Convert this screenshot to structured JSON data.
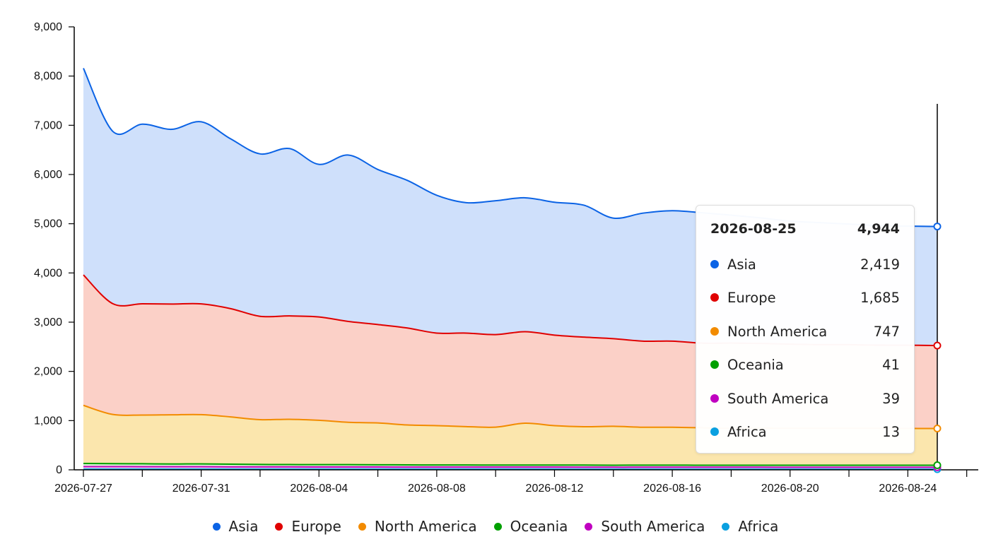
{
  "chart_data": {
    "type": "area",
    "stacked": true,
    "x": [
      "2026-07-27",
      "2026-07-28",
      "2026-07-29",
      "2026-07-30",
      "2026-07-31",
      "2026-08-01",
      "2026-08-02",
      "2026-08-03",
      "2026-08-04",
      "2026-08-05",
      "2026-08-06",
      "2026-08-07",
      "2026-08-08",
      "2026-08-09",
      "2026-08-10",
      "2026-08-11",
      "2026-08-12",
      "2026-08-13",
      "2026-08-14",
      "2026-08-15",
      "2026-08-16",
      "2026-08-17",
      "2026-08-18",
      "2026-08-19",
      "2026-08-20",
      "2026-08-21",
      "2026-08-22",
      "2026-08-23",
      "2026-08-24",
      "2026-08-25"
    ],
    "x_ticks": [
      "2026-07-27",
      "2026-07-31",
      "2026-08-04",
      "2026-08-08",
      "2026-08-12",
      "2026-08-16",
      "2026-08-20",
      "2026-08-24"
    ],
    "ylim": [
      0,
      9000
    ],
    "y_ticks": [
      "0",
      "1,000",
      "2,000",
      "3,000",
      "4,000",
      "5,000",
      "6,000",
      "7,000",
      "8,000",
      "9,000"
    ],
    "legend_position": "bottom",
    "grid": false,
    "series": [
      {
        "name": "Asia",
        "color": "#0b63e5",
        "fill": "#cfe0fb",
        "values": [
          4200,
          3500,
          3650,
          3550,
          3700,
          3450,
          3300,
          3400,
          3100,
          3380,
          3150,
          3000,
          2800,
          2650,
          2720,
          2720,
          2700,
          2680,
          2450,
          2600,
          2650,
          2650,
          2600,
          2550,
          2500,
          2480,
          2450,
          2430,
          2420,
          2419
        ]
      },
      {
        "name": "Europe",
        "color": "#e00000",
        "fill": "#fbd0c7",
        "values": [
          2650,
          2250,
          2260,
          2250,
          2250,
          2200,
          2100,
          2100,
          2100,
          2050,
          2000,
          1970,
          1880,
          1900,
          1880,
          1860,
          1840,
          1820,
          1780,
          1750,
          1750,
          1720,
          1730,
          1720,
          1710,
          1700,
          1700,
          1690,
          1690,
          1685
        ]
      },
      {
        "name": "North America",
        "color": "#f28b00",
        "fill": "#fbe6ad",
        "values": [
          1180,
          1000,
          990,
          1000,
          1000,
          960,
          910,
          920,
          900,
          860,
          850,
          810,
          800,
          780,
          770,
          850,
          800,
          780,
          790,
          770,
          770,
          760,
          750,
          755,
          750,
          750,
          750,
          750,
          748,
          747
        ]
      },
      {
        "name": "Oceania",
        "color": "#00a000",
        "fill": "#d8efd3",
        "values": [
          65,
          60,
          60,
          55,
          58,
          55,
          50,
          48,
          48,
          48,
          45,
          45,
          42,
          42,
          42,
          42,
          42,
          42,
          41,
          42,
          42,
          41,
          41,
          41,
          41,
          41,
          41,
          41,
          41,
          41
        ]
      },
      {
        "name": "South America",
        "color": "#c000c0",
        "fill": "#eed5ee",
        "values": [
          50,
          50,
          48,
          48,
          48,
          46,
          45,
          45,
          44,
          43,
          43,
          42,
          42,
          42,
          41,
          41,
          41,
          41,
          40,
          40,
          40,
          40,
          40,
          40,
          39,
          39,
          39,
          39,
          39,
          39
        ]
      },
      {
        "name": "Africa",
        "color": "#0aa0e0",
        "fill": "#d3ecf8",
        "values": [
          15,
          15,
          15,
          15,
          15,
          14,
          14,
          14,
          14,
          14,
          14,
          14,
          14,
          14,
          14,
          14,
          14,
          13,
          13,
          13,
          13,
          13,
          13,
          13,
          13,
          13,
          13,
          13,
          13,
          13
        ]
      }
    ]
  },
  "tooltip": {
    "date": "2026-08-25",
    "total": "4,944",
    "rows": [
      {
        "name": "Asia",
        "value": "2,419",
        "color": "#0b63e5"
      },
      {
        "name": "Europe",
        "value": "1,685",
        "color": "#e00000"
      },
      {
        "name": "North America",
        "value": "747",
        "color": "#f28b00"
      },
      {
        "name": "Oceania",
        "value": "41",
        "color": "#00a000"
      },
      {
        "name": "South America",
        "value": "39",
        "color": "#c000c0"
      },
      {
        "name": "Africa",
        "value": "13",
        "color": "#0aa0e0"
      }
    ]
  },
  "legend": [
    {
      "name": "Asia",
      "color": "#0b63e5"
    },
    {
      "name": "Europe",
      "color": "#e00000"
    },
    {
      "name": "North America",
      "color": "#f28b00"
    },
    {
      "name": "Oceania",
      "color": "#00a000"
    },
    {
      "name": "South America",
      "color": "#c000c0"
    },
    {
      "name": "Africa",
      "color": "#0aa0e0"
    }
  ]
}
